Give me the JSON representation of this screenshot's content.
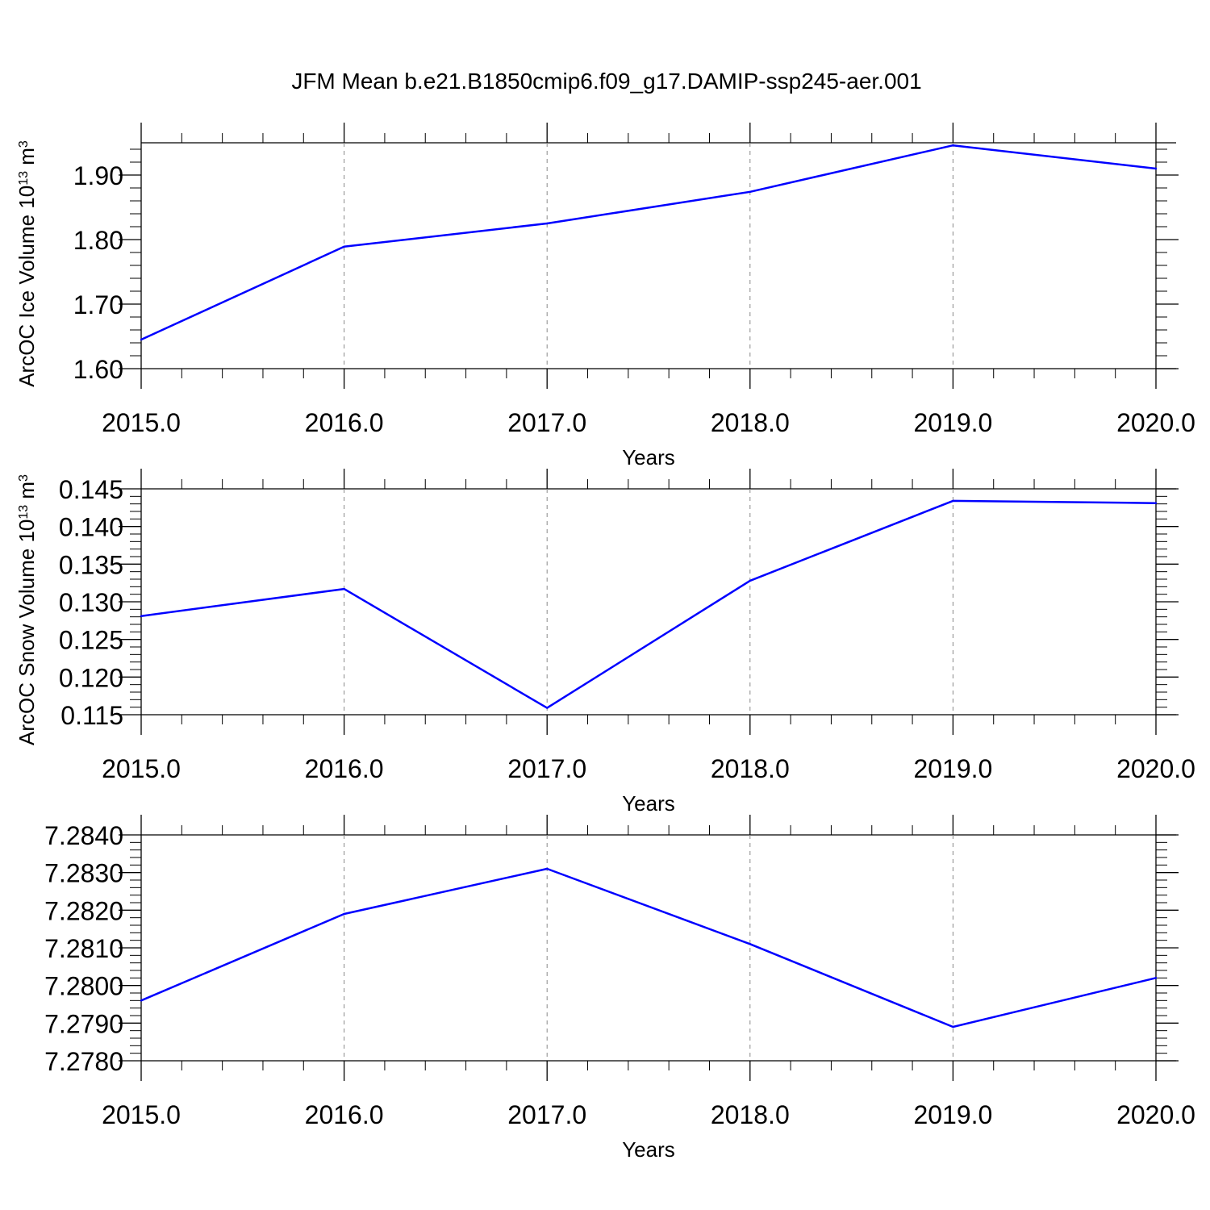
{
  "title": "JFM Mean b.e21.B1850cmip6.f09_g17.DAMIP-ssp245-aer.001",
  "colors": {
    "line": "#0000ff",
    "axis": "#000000",
    "grid": "#888888"
  },
  "chart_data": [
    {
      "type": "line",
      "ylabel": "ArcOC Ice Volume 10",
      "ylabel_exp": "13",
      "ylabel_unit": " m",
      "ylabel_unit_exp": "3",
      "xlabel": "Years",
      "xlim": [
        2015,
        2020
      ],
      "ylim": [
        1.6,
        1.95
      ],
      "xticks": [
        2015,
        2016,
        2017,
        2018,
        2019,
        2020
      ],
      "xtick_labels": [
        "2015.0",
        "2016.0",
        "2017.0",
        "2018.0",
        "2019.0",
        "2020.0"
      ],
      "yticks": [
        1.6,
        1.7,
        1.8,
        1.9
      ],
      "ytick_labels": [
        "1.60",
        "1.70",
        "1.80",
        "1.90"
      ],
      "grid": "vertical dashed",
      "x": [
        2015,
        2016,
        2017,
        2018,
        2019,
        2020
      ],
      "values": [
        1.645,
        1.789,
        1.825,
        1.874,
        1.946,
        1.91
      ]
    },
    {
      "type": "line",
      "ylabel": "ArcOC Snow Volume 10",
      "ylabel_exp": "13",
      "ylabel_unit": " m",
      "ylabel_unit_exp": "3",
      "xlabel": "Years",
      "xlim": [
        2015,
        2020
      ],
      "ylim": [
        0.115,
        0.145
      ],
      "xticks": [
        2015,
        2016,
        2017,
        2018,
        2019,
        2020
      ],
      "xtick_labels": [
        "2015.0",
        "2016.0",
        "2017.0",
        "2018.0",
        "2019.0",
        "2020.0"
      ],
      "yticks": [
        0.115,
        0.12,
        0.125,
        0.13,
        0.135,
        0.14,
        0.145
      ],
      "ytick_labels": [
        "0.115",
        "0.120",
        "0.125",
        "0.130",
        "0.135",
        "0.140",
        "0.145"
      ],
      "grid": "vertical dashed",
      "x": [
        2015,
        2016,
        2017,
        2018,
        2019,
        2020
      ],
      "values": [
        0.1281,
        0.1317,
        0.1159,
        0.1328,
        0.1434,
        0.1431
      ]
    },
    {
      "type": "line",
      "ylabel": "",
      "ylabel_exp": "",
      "ylabel_unit": "",
      "ylabel_unit_exp": "",
      "xlabel": "Years",
      "xlim": [
        2015,
        2020
      ],
      "ylim": [
        7.278,
        7.284
      ],
      "xticks": [
        2015,
        2016,
        2017,
        2018,
        2019,
        2020
      ],
      "xtick_labels": [
        "2015.0",
        "2016.0",
        "2017.0",
        "2018.0",
        "2019.0",
        "2020.0"
      ],
      "yticks": [
        7.278,
        7.279,
        7.28,
        7.281,
        7.282,
        7.283,
        7.284
      ],
      "ytick_labels": [
        "7.2780",
        "7.2790",
        "7.2800",
        "7.2810",
        "7.2820",
        "7.2830",
        "7.2840"
      ],
      "grid": "vertical dashed",
      "x": [
        2015,
        2016,
        2017,
        2018,
        2019,
        2020
      ],
      "values": [
        7.2796,
        7.2819,
        7.2831,
        7.2811,
        7.2789,
        7.2802
      ]
    }
  ]
}
